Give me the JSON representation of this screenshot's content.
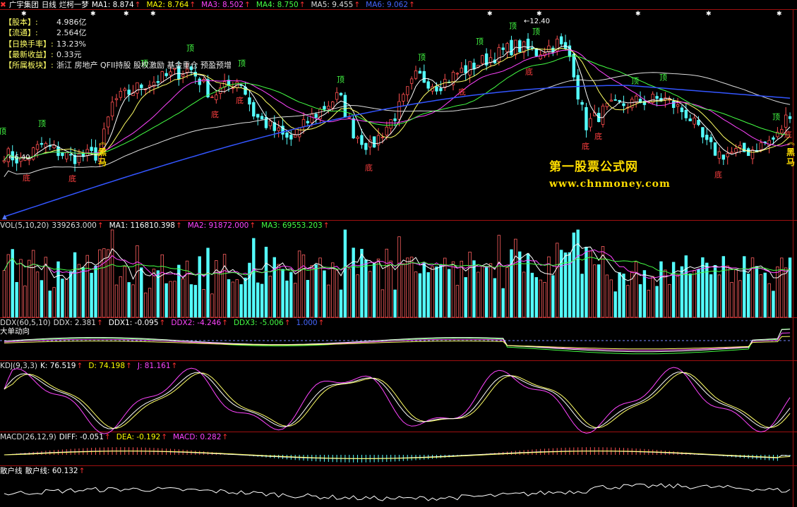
{
  "header": {
    "stock_name": "广宇集团",
    "period": "日线",
    "indicator_name": "烂柯一梦",
    "ma": [
      {
        "label": "MA1: 8.874",
        "color": "#ffffff"
      },
      {
        "label": "MA2: 8.764",
        "color": "#ffff00"
      },
      {
        "label": "MA3: 8.502",
        "color": "#ff44ff"
      },
      {
        "label": "MA4: 8.750",
        "color": "#44ff44"
      },
      {
        "label": "MA5: 9.455",
        "color": "#dddddd"
      },
      {
        "label": "MA6: 9.062",
        "color": "#4466ff"
      }
    ]
  },
  "info": [
    {
      "key": "【股本】:",
      "value": "4.986亿"
    },
    {
      "key": "【流通】:",
      "value": "2.564亿"
    },
    {
      "key": "【日换手率】:",
      "value": "13.23%"
    },
    {
      "key": "【最新收益】:",
      "value": "0.33元"
    },
    {
      "key": "【所属板块】:",
      "value": "浙江  房地产  QFII持股  股权激励  基金重仓  预盈预增"
    }
  ],
  "watermark": {
    "line1": "第一股票公式网",
    "line2": "www.chnmoney.com"
  },
  "chart_data": {
    "type": "candlestick",
    "price_range": [
      6.5,
      12.9
    ],
    "annotations": {
      "high_label": "12.40",
      "low_label": "6.40",
      "top_marker": "顶",
      "bottom_marker": "底",
      "dark_horse": "黑马"
    },
    "top_markers_x": [
      4,
      60,
      205,
      270,
      343,
      483,
      598,
      680,
      727,
      760,
      900,
      940,
      1100
    ],
    "bottom_markers_x": [
      38,
      103,
      305,
      340,
      523,
      655,
      750,
      830,
      848,
      1018,
      1117
    ],
    "dark_horse_x": [
      145,
      1120
    ],
    "volume": {
      "label": "VOL(5,10,20)",
      "values": [
        {
          "label": "339263.000",
          "color": "#dddddd"
        },
        {
          "label": "MA1: 116810.398",
          "color": "#ffffff"
        },
        {
          "label": "MA2: 91872.000",
          "color": "#ff44ff"
        },
        {
          "label": "MA3: 69553.203",
          "color": "#44ff44"
        }
      ]
    },
    "ddx": {
      "label": "DDX(60,5,10)",
      "subtitle": "大单动向",
      "values": [
        {
          "label": "DDX: 2.381",
          "color": "#dddddd"
        },
        {
          "label": "DDX1: -0.095",
          "color": "#ffffff"
        },
        {
          "label": "DDX2: -4.246",
          "color": "#ff44ff"
        },
        {
          "label": "DDX3: -5.006",
          "color": "#44ff44"
        },
        {
          "label": "1.000",
          "color": "#4466ff"
        }
      ]
    },
    "kdj": {
      "label": "KDJ(9,3,3)",
      "values": [
        {
          "label": "K: 76.519",
          "color": "#ffffff"
        },
        {
          "label": "D: 74.198",
          "color": "#ffff00"
        },
        {
          "label": "J: 81.161",
          "color": "#ff44ff"
        }
      ]
    },
    "macd": {
      "label": "MACD(26,12,9)",
      "values": [
        {
          "label": "DIFF: -0.051",
          "color": "#ffffff"
        },
        {
          "label": "DEA: -0.192",
          "color": "#ffff00"
        },
        {
          "label": "MACD: 0.282",
          "color": "#ff44ff"
        }
      ]
    },
    "retail": {
      "label": "散户线",
      "values": [
        {
          "label": "散户线: 60.132",
          "color": "#ffffff"
        }
      ]
    }
  }
}
